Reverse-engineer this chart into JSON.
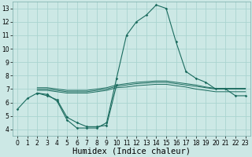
{
  "bg_color": "#cce8e5",
  "grid_color": "#aad4d0",
  "line_color": "#1a6b5e",
  "xlabel": "Humidex (Indice chaleur)",
  "xlabel_fontsize": 7.5,
  "tick_fontsize": 5.5,
  "xlim": [
    -0.5,
    23.5
  ],
  "ylim": [
    3.5,
    13.5
  ],
  "xticks": [
    0,
    1,
    2,
    3,
    4,
    5,
    6,
    7,
    8,
    9,
    10,
    11,
    12,
    13,
    14,
    15,
    16,
    17,
    18,
    19,
    20,
    21,
    22,
    23
  ],
  "yticks": [
    4,
    5,
    6,
    7,
    8,
    9,
    10,
    11,
    12,
    13
  ],
  "series": [
    [
      5.5,
      6.3,
      6.7,
      6.6,
      6.1,
      4.7,
      4.1,
      4.1,
      4.1,
      4.5,
      7.8,
      11.0,
      12.0,
      12.5,
      13.25,
      13.0,
      10.5,
      8.3,
      7.8,
      7.5,
      7.0,
      7.0,
      6.5,
      6.5
    ],
    [
      null,
      null,
      6.7,
      6.5,
      6.2,
      4.9,
      4.5,
      4.2,
      4.2,
      4.3,
      7.3,
      null,
      null,
      null,
      null,
      null,
      null,
      null,
      null,
      null,
      null,
      null,
      null,
      null
    ],
    [
      null,
      null,
      7.0,
      7.0,
      6.9,
      6.8,
      6.8,
      6.8,
      6.9,
      7.0,
      7.2,
      7.3,
      7.4,
      7.45,
      7.5,
      7.5,
      7.4,
      7.3,
      7.2,
      7.1,
      7.0,
      7.0,
      7.0,
      7.0
    ],
    [
      null,
      null,
      7.1,
      7.1,
      7.0,
      6.9,
      6.9,
      6.9,
      7.0,
      7.1,
      7.3,
      7.4,
      7.5,
      7.55,
      7.6,
      7.6,
      7.5,
      7.4,
      7.3,
      7.15,
      7.05,
      7.05,
      7.05,
      7.05
    ],
    [
      null,
      null,
      6.9,
      6.9,
      6.8,
      6.7,
      6.7,
      6.7,
      6.8,
      6.9,
      7.1,
      7.15,
      7.25,
      7.3,
      7.35,
      7.35,
      7.25,
      7.15,
      7.0,
      6.9,
      6.8,
      6.8,
      6.8,
      6.8
    ]
  ]
}
